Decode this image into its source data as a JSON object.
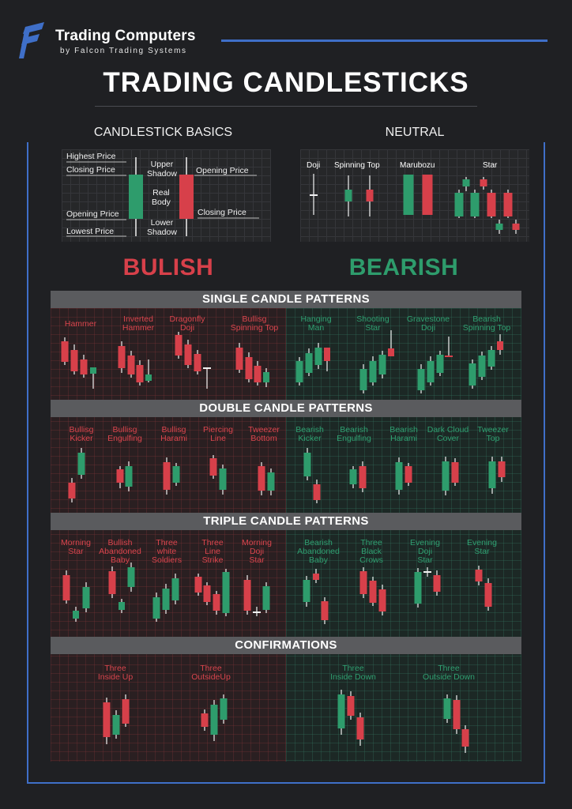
{
  "brand": {
    "name": "Trading Computers",
    "sub": "by Falcon Trading Systems"
  },
  "title": "TRADING CANDLESTICKS",
  "basics": {
    "heading": "CANDLESTICK BASICS",
    "labels": {
      "highest": "Highest Price",
      "closing_l": "Closing Price",
      "opening_l": "Opening Price",
      "lowest": "Lowest Price",
      "upper": "Upper\nShadow",
      "real": "Real\nBody",
      "lower": "Lower\nShadow",
      "opening_r": "Opening Price",
      "closing_r": "Closing Price"
    }
  },
  "neutral": {
    "heading": "NEUTRAL",
    "items": [
      "Doji",
      "Spinning Top",
      "Marubozu",
      "Star"
    ]
  },
  "bullish_label": "BULISH",
  "bearish_label": "BEARISH",
  "sections": {
    "single": "SINGLE CANDLE PATTERNS",
    "double": "DOUBLE CANDLE PATTERNS",
    "triple": "TRIPLE CANDLE PATTERNS",
    "confirm": "CONFIRMATIONS"
  },
  "single": {
    "bull": [
      "Hammer",
      "Inverted\nHammer",
      "Dragonfly\nDoji",
      "Bullisg\nSpinning Top"
    ],
    "bear": [
      "Hanging\nMan",
      "Shooting\nStar",
      "Gravestone\nDoji",
      "Bearish\nSpinning Top"
    ]
  },
  "double": {
    "bull": [
      "Bullisg\nKicker",
      "Bullisg\nEngulfing",
      "Bullisg\nHarami",
      "Piercing\nLine",
      "Tweezer\nBottom"
    ],
    "bear": [
      "Bearish\nKicker",
      "Bearish\nEngulfing",
      "Bearish\nHarami",
      "Dark Cloud\nCover",
      "Tweezer\nTop"
    ]
  },
  "triple": {
    "bull": [
      "Morning\nStar",
      "Bullish\nAbandoned\nBaby",
      "Three\nwhite\nSoldiers",
      "Three\nLine\nStrike",
      "Morning\nDoji\nStar"
    ],
    "bear": [
      "Bearish\nAbandoned\nBaby",
      "Three\nBlack\nCrows",
      "Evening\nDoji\nStar",
      "Evening\nStar"
    ]
  },
  "confirm": {
    "bull": [
      "Three\nInside Up",
      "Three\nOutsideUp"
    ],
    "bear": [
      "Three\nInside Down",
      "Three\nOutside Down"
    ]
  },
  "colors": {
    "bull": "#2e9c6c",
    "bear": "#d7404a",
    "accent": "#3f6fc8",
    "bar": "#5a5b5e"
  },
  "icons": {
    "logo": "falcon-logo-icon"
  }
}
